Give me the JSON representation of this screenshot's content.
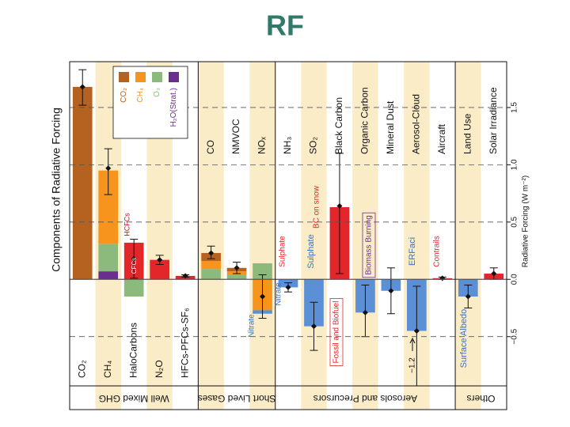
{
  "chart_data": {
    "type": "bar",
    "title": "RF",
    "y_label_left": "Components of Radiative Forcing",
    "y_label_right": "Radiative Forcing (W m⁻²)",
    "groups": [
      {
        "name": "Well Mixed GHG",
        "categories": [
          "CO₂",
          "CH₄",
          "HaloCarbons",
          "N₂O",
          "HFCs-PFCs-SF₆"
        ]
      },
      {
        "name": "Short Lived Gases",
        "categories": [
          "CO",
          "NMVOC",
          "NOₓ"
        ]
      },
      {
        "name": "Aerosols and Precursors",
        "categories": [
          "NH₃",
          "SO₂",
          "Black Carbon",
          "Organic Carbon",
          "Mineral Dust",
          "Aerosol-Cloud",
          "Aircraft"
        ]
      },
      {
        "name": "Others",
        "categories": [
          "Land Use",
          "Solar Irradiance"
        ]
      }
    ],
    "series": [
      {
        "name": "CO₂",
        "color": "#b5611f",
        "values": [
          1.68,
          null,
          null,
          null,
          null,
          0.07,
          0.03,
          null,
          null,
          null,
          null,
          null,
          null,
          null,
          null,
          null,
          null
        ]
      },
      {
        "name": "CH₄",
        "color": "#f7941d",
        "values": [
          null,
          0.64,
          null,
          null,
          null,
          0.07,
          0.03,
          -0.27,
          null,
          null,
          null,
          null,
          null,
          null,
          null,
          null,
          null
        ]
      },
      {
        "name": "O₃",
        "color": "#8cb97c",
        "values": [
          null,
          0.24,
          -0.15,
          null,
          null,
          0.09,
          0.04,
          0.14,
          null,
          null,
          null,
          null,
          null,
          null,
          null,
          null,
          null
        ]
      },
      {
        "name": "H₂O(Strat.)",
        "color": "#6b2d90",
        "values": [
          null,
          0.07,
          null,
          null,
          null,
          null,
          null,
          null,
          null,
          null,
          null,
          null,
          null,
          null,
          null,
          null,
          null
        ]
      }
    ],
    "component_series": [
      {
        "color": "#e3262a",
        "values": [
          null,
          null,
          0.32,
          0.17,
          0.03,
          null,
          null,
          null,
          null,
          null,
          0.63,
          null,
          null,
          null,
          0.01,
          null,
          0.05
        ]
      },
      {
        "color": "#5b8fd6",
        "values": [
          null,
          null,
          null,
          null,
          null,
          null,
          null,
          -0.03,
          -0.07,
          -0.41,
          null,
          -0.29,
          -0.1,
          -0.45,
          null,
          -0.15,
          null
        ]
      }
    ],
    "totals": [
      1.68,
      0.97,
      0.18,
      0.17,
      0.03,
      0.23,
      0.1,
      -0.15,
      -0.07,
      -0.41,
      0.64,
      -0.29,
      -0.1,
      -0.45,
      0.01,
      -0.15,
      0.05
    ],
    "error_low": [
      1.52,
      0.74,
      0.01,
      0.13,
      0.02,
      0.18,
      0.05,
      -0.34,
      -0.11,
      -0.62,
      0.05,
      -0.5,
      -0.3,
      -1.2,
      0.0,
      -0.25,
      0.0
    ],
    "error_high": [
      1.83,
      1.14,
      0.35,
      0.21,
      0.04,
      0.29,
      0.15,
      0.04,
      -0.03,
      -0.2,
      1.1,
      -0.05,
      0.1,
      -0.06,
      0.02,
      -0.05,
      0.1
    ],
    "annotations": [
      {
        "text": "HCFCs",
        "color": "#c0141a"
      },
      {
        "text": "CFCs",
        "color": "#ffffff"
      },
      {
        "text": "Nitrate",
        "color": "#3b6fc0"
      },
      {
        "text": "Nitrate",
        "color": "#3b6fc0"
      },
      {
        "text": "Sulphate",
        "color": "#e3262a"
      },
      {
        "text": "Sulphate",
        "color": "#3b6fc0"
      },
      {
        "text": "BC on snow",
        "color": "#e3262a"
      },
      {
        "text": "Fossil and Biofuel",
        "color": "#e3262a"
      },
      {
        "text": "Biomass Burning",
        "color": "#6b2d90"
      },
      {
        "text": "ERFaci",
        "color": "#3b6fc0"
      },
      {
        "text": "Contrails",
        "color": "#e3262a"
      },
      {
        "text": "Surface Albedo",
        "color": "#3b6fc0"
      },
      {
        "text": "−1.2",
        "color": "#111111"
      }
    ],
    "ylim": [
      -0.93,
      1.9
    ],
    "yticks": [
      {
        "value": -0.5,
        "label": "−0.5"
      },
      {
        "value": 0,
        "label": "0.0"
      },
      0.5,
      {
        "value": 1,
        "label": "1.0"
      },
      1.5
    ],
    "grid": true
  }
}
